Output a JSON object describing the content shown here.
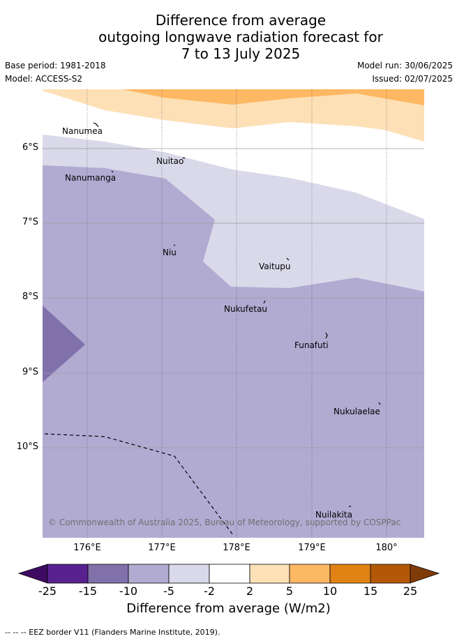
{
  "title": {
    "line1": "Difference from average",
    "line2": "outgoing longwave radiation forecast for",
    "line3": "7 to 13 July 2025"
  },
  "meta": {
    "base_period": "Base period: 1981-2018",
    "model": "Model: ACCESS-S2",
    "model_run": "Model run: 30/06/2025",
    "issued": "Issued: 02/07/2025"
  },
  "map": {
    "lat_labels": [
      "6°S",
      "7°S",
      "8°S",
      "9°S",
      "10°S"
    ],
    "lon_labels": [
      "176°E",
      "177°E",
      "178°E",
      "179°E",
      "180°"
    ],
    "islands": [
      "Nanumea",
      "Nuitao",
      "Nanumanga",
      "Niu",
      "Vaitupu",
      "Nukufetau",
      "Funafuti",
      "Nukulaelae",
      "Nuilakita"
    ],
    "copyright": "© Commonwealth of Australia 2025, Bureau of Meteorology, supported by COSPPac"
  },
  "colorbar": {
    "ticks": [
      "-25",
      "-15",
      "-10",
      "-5",
      "-2",
      "2",
      "5",
      "10",
      "15",
      "25"
    ],
    "colors": [
      "#3f0a63",
      "#59218f",
      "#8071ab",
      "#b1abd2",
      "#d9d9ea",
      "#ffffff",
      "#fde0b6",
      "#fdb863",
      "#e08214",
      "#b35806",
      "#7f3b08"
    ],
    "title": "Difference from average (W/m2)"
  },
  "footnote": "-- -- -- EEZ border V11 (Flanders Marine Institute, 2019)."
}
